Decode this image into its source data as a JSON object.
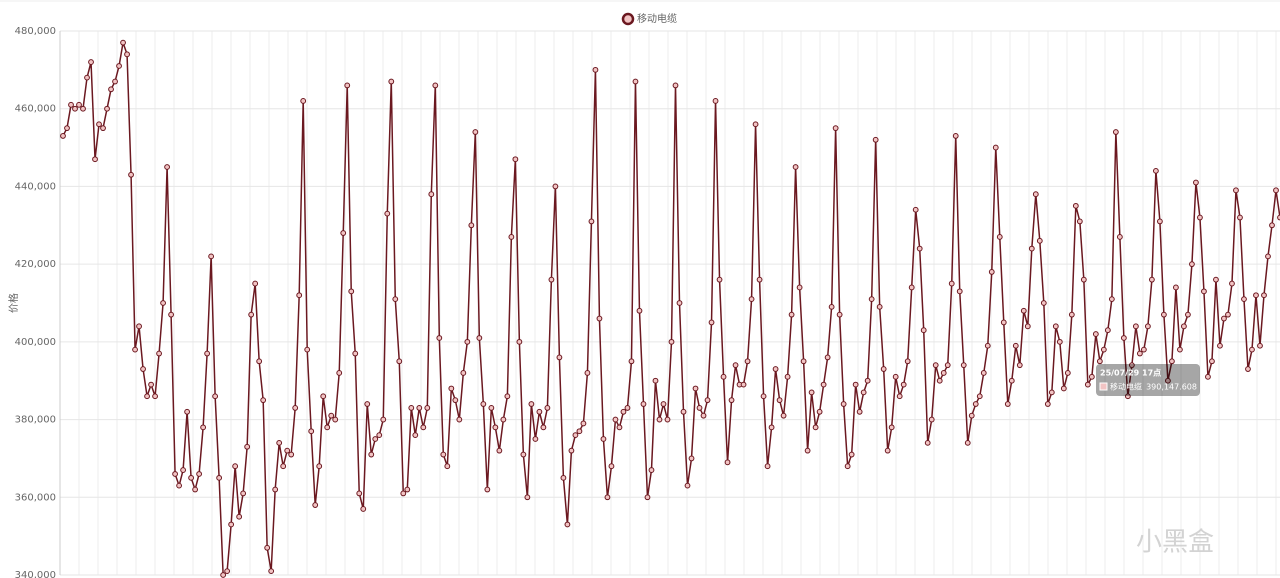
{
  "chart_data": {
    "type": "line",
    "y_label": "价格",
    "series": [
      {
        "name": "移动电缆",
        "color": "#6b1820",
        "marker_fill": "#f2c4c4",
        "values": [
          453000,
          455000,
          461000,
          460000,
          461000,
          460000,
          468000,
          472000,
          447000,
          456000,
          455000,
          460000,
          465000,
          467000,
          471000,
          477000,
          474000,
          443000,
          398000,
          404000,
          393000,
          386000,
          389000,
          386000,
          397000,
          410000,
          445000,
          407000,
          366000,
          363000,
          367000,
          382000,
          365000,
          362000,
          366000,
          378000,
          397000,
          422000,
          386000,
          365000,
          340000,
          341000,
          353000,
          368000,
          355000,
          361000,
          373000,
          407000,
          415000,
          395000,
          385000,
          347000,
          341000,
          362000,
          374000,
          368000,
          372000,
          371000,
          383000,
          412000,
          462000,
          398000,
          377000,
          358000,
          368000,
          386000,
          378000,
          381000,
          380000,
          392000,
          428000,
          466000,
          413000,
          397000,
          361000,
          357000,
          384000,
          371000,
          375000,
          376000,
          380000,
          433000,
          467000,
          411000,
          395000,
          361000,
          362000,
          383000,
          376000,
          383000,
          378000,
          383000,
          438000,
          466000,
          401000,
          371000,
          368000,
          388000,
          385000,
          380000,
          392000,
          400000,
          430000,
          454000,
          401000,
          384000,
          362000,
          383000,
          378000,
          372000,
          380000,
          386000,
          427000,
          447000,
          400000,
          371000,
          360000,
          384000,
          375000,
          382000,
          378000,
          383000,
          416000,
          440000,
          396000,
          365000,
          353000,
          372000,
          376000,
          377000,
          379000,
          392000,
          431000,
          470000,
          406000,
          375000,
          360000,
          368000,
          380000,
          378000,
          382000,
          383000,
          395000,
          467000,
          408000,
          384000,
          360000,
          367000,
          390000,
          380000,
          384000,
          380000,
          400000,
          466000,
          410000,
          382000,
          363000,
          370000,
          388000,
          383000,
          381000,
          385000,
          405000,
          462000,
          416000,
          391000,
          369000,
          385000,
          394000,
          389000,
          389000,
          395000,
          411000,
          456000,
          416000,
          386000,
          368000,
          378000,
          393000,
          385000,
          381000,
          391000,
          407000,
          445000,
          414000,
          395000,
          372000,
          387000,
          378000,
          382000,
          389000,
          396000,
          409000,
          455000,
          407000,
          384000,
          368000,
          371000,
          389000,
          382000,
          387000,
          390000,
          411000,
          452000,
          409000,
          393000,
          372000,
          378000,
          391000,
          386000,
          389000,
          395000,
          414000,
          434000,
          424000,
          403000,
          374000,
          380000,
          394000,
          390000,
          392000,
          394000,
          415000,
          453000,
          413000,
          394000,
          374000,
          381000,
          384000,
          386000,
          392000,
          399000,
          418000,
          450000,
          427000,
          405000,
          384000,
          390000,
          399000,
          394000,
          408000,
          404000,
          424000,
          438000,
          426000,
          410000,
          384000,
          387000,
          404000,
          400000,
          388000,
          392000,
          407000,
          435000,
          431000,
          416000,
          389000,
          391000,
          402000,
          395000,
          398000,
          403000,
          411000,
          454000,
          427000,
          401000,
          386000,
          394000,
          404000,
          397000,
          398000,
          404000,
          416000,
          444000,
          431000,
          407000,
          390000,
          395000,
          414000,
          398000,
          404000,
          407000,
          420000,
          441000,
          432000,
          413000,
          391000,
          395000,
          416000,
          399000,
          406000,
          407000,
          415000,
          439000,
          432000,
          411000,
          393000,
          398000,
          412000,
          399000,
          412000,
          422000,
          430000,
          439000,
          432000
        ]
      }
    ],
    "ylim": [
      340000,
      480000
    ],
    "yticks": [
      {
        "value": 340000,
        "label": "340,000"
      },
      {
        "value": 360000,
        "label": "360,000"
      },
      {
        "value": 380000,
        "label": "380,000"
      },
      {
        "value": 400000,
        "label": "400,000"
      },
      {
        "value": 420000,
        "label": "420,000"
      },
      {
        "value": 440000,
        "label": "440,000"
      },
      {
        "value": 460000,
        "label": "460,000"
      },
      {
        "value": 480000,
        "label": "480,000"
      }
    ],
    "grid": true,
    "legend": "top",
    "tooltip": {
      "title": "25/07/29 17点",
      "series": "移动电缆",
      "value": 390147.608,
      "value_label": "390,147.608"
    },
    "watermark": "小黑盒"
  }
}
